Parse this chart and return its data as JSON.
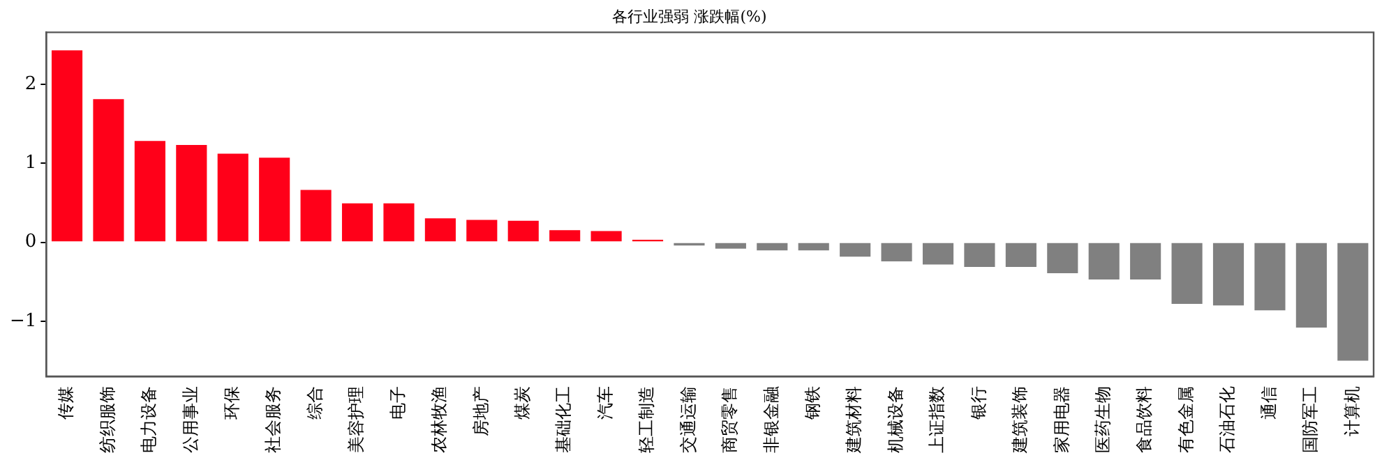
{
  "chart_data": {
    "type": "bar",
    "title": "各行业强弱 涨跌幅(%)",
    "categories": [
      "传媒",
      "纺织服饰",
      "电力设备",
      "公用事业",
      "环保",
      "社会服务",
      "综合",
      "美容护理",
      "电子",
      "农林牧渔",
      "房地产",
      "煤炭",
      "基础化工",
      "汽车",
      "轻工制造",
      "交通运输",
      "商贸零售",
      "非银金融",
      "钢铁",
      "建筑材料",
      "机械设备",
      "上证指数",
      "银行",
      "建筑装饰",
      "家用电器",
      "医药生物",
      "食品饮料",
      "有色金属",
      "石油石化",
      "通信",
      "国防军工",
      "计算机"
    ],
    "values": [
      2.45,
      1.83,
      1.3,
      1.25,
      1.14,
      1.09,
      0.68,
      0.51,
      0.51,
      0.32,
      0.3,
      0.29,
      0.17,
      0.16,
      0.05,
      -0.06,
      -0.1,
      -0.12,
      -0.12,
      -0.2,
      -0.26,
      -0.3,
      -0.33,
      -0.33,
      -0.41,
      -0.49,
      -0.49,
      -0.8,
      -0.82,
      -0.88,
      -1.1,
      -1.52
    ],
    "colors": [
      "#ff0019",
      "#ff0019",
      "#ff0019",
      "#ff0019",
      "#ff0019",
      "#ff0019",
      "#ff0019",
      "#ff0019",
      "#ff0019",
      "#ff0019",
      "#ff0019",
      "#ff0019",
      "#ff0019",
      "#ff0019",
      "#ff0019",
      "#808080",
      "#808080",
      "#808080",
      "#808080",
      "#808080",
      "#808080",
      "#808080",
      "#808080",
      "#808080",
      "#808080",
      "#808080",
      "#808080",
      "#808080",
      "#808080",
      "#808080",
      "#808080",
      "#808080"
    ],
    "ylim": [
      -1.7,
      2.66
    ],
    "yticks": [
      -1,
      0,
      1,
      2
    ],
    "grid": false,
    "legend": false
  }
}
